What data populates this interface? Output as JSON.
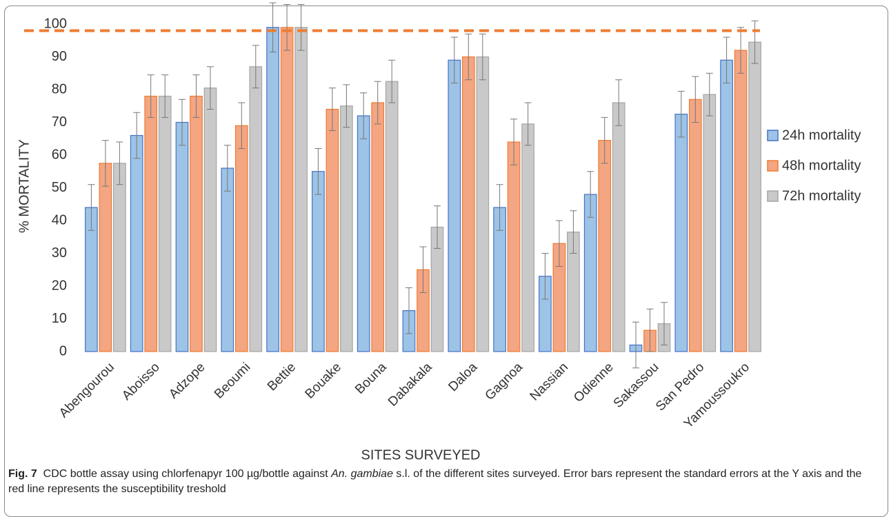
{
  "chart_data": {
    "type": "bar",
    "categories": [
      "Abengourou",
      "Aboisso",
      "Adzope",
      "Beoumi",
      "Bettie",
      "Bouake",
      "Bouna",
      "Dabakala",
      "Daloa",
      "Gagnoa",
      "Nassian",
      "Odienne",
      "Sakassou",
      "San Pedro",
      "Yamoussoukro"
    ],
    "series": [
      {
        "name": "24h mortality",
        "color": "#9dc3e6",
        "border": "#4472c4",
        "values": [
          44,
          66,
          70,
          56,
          99,
          55,
          72,
          12.5,
          89,
          44,
          23,
          48,
          2,
          72.5,
          89
        ],
        "errors": [
          7,
          7,
          7,
          7,
          7.5,
          7,
          7,
          7,
          7,
          7,
          7,
          7,
          7,
          7,
          7
        ]
      },
      {
        "name": "48h mortality",
        "color": "#f4a582",
        "border": "#ed7d31",
        "values": [
          57.5,
          78,
          78,
          69,
          99,
          74,
          76,
          25,
          90,
          64,
          33,
          64.5,
          6.5,
          77,
          92
        ],
        "errors": [
          7,
          6.5,
          6.5,
          7,
          7,
          6.5,
          6.5,
          7,
          7,
          7,
          7,
          7,
          6.5,
          7,
          7
        ]
      },
      {
        "name": "72h mortality",
        "color": "#c9c9c9",
        "border": "#a5a5a5",
        "values": [
          57.5,
          78,
          80.5,
          87,
          99,
          75,
          82.5,
          38,
          90,
          69.5,
          36.5,
          76,
          8.5,
          78.5,
          94.5
        ],
        "errors": [
          6.5,
          6.5,
          6.5,
          6.5,
          7,
          6.5,
          6.5,
          6.5,
          7,
          6.5,
          6.5,
          7,
          6.5,
          6.5,
          6.5
        ]
      }
    ],
    "threshold": 98,
    "threshold_color": "#ed7d31",
    "ylim": [
      0,
      100
    ],
    "yticks": [
      0,
      10,
      20,
      30,
      40,
      50,
      60,
      70,
      80,
      90,
      100
    ],
    "grid": false,
    "ylabel": "% MORTALITY",
    "xlabel": "SITES SURVEYED",
    "legend": "right"
  },
  "caption": {
    "label": "Fig. 7",
    "text": [
      "CDC bottle assay using chlorfenapyr 100 µg/bottle against ",
      "An. gambiae",
      " s.l. of the different sites surveyed. Error bars represent the standard errors at the Y axis and the red line represents the susceptibility treshold"
    ]
  }
}
